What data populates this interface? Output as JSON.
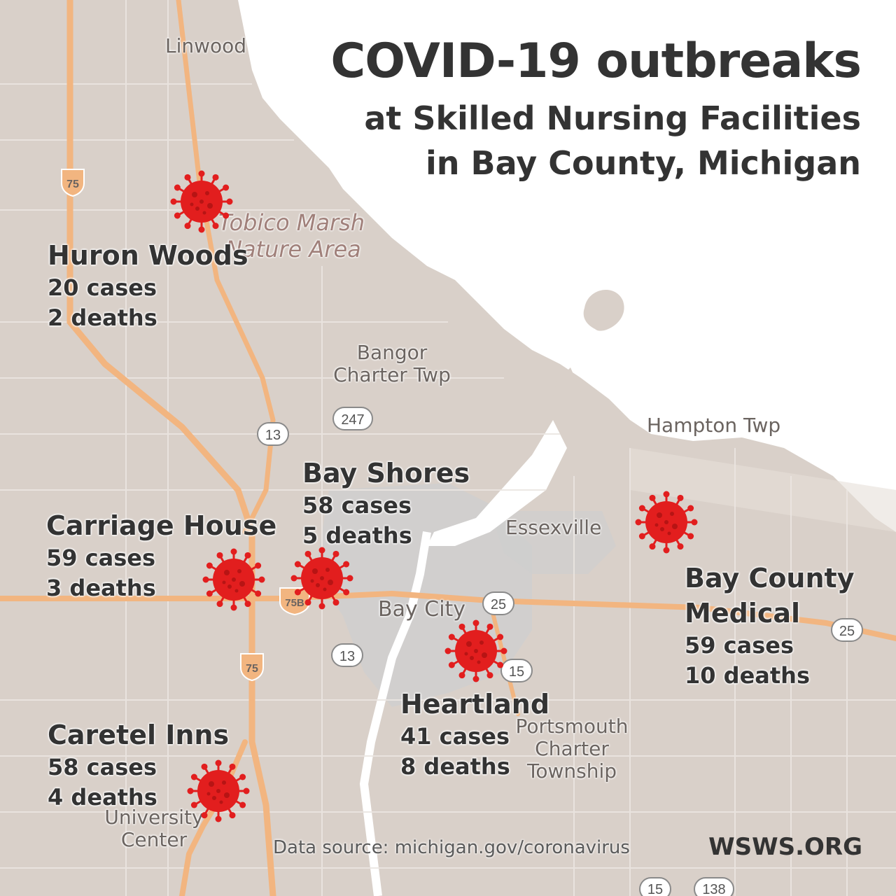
{
  "title": {
    "line1": "COVID-19 outbreaks",
    "line2": "at Skilled Nursing Facilities",
    "line3": "in Bay County, Michigan"
  },
  "map_labels": {
    "linwood": "Linwood",
    "tobico_1": "Tobico Marsh",
    "tobico_2": "Nature Area",
    "bangor_1": "Bangor",
    "bangor_2": "Charter Twp",
    "hampton": "Hampton Twp",
    "essexville": "Essexville",
    "bay_city": "Bay City",
    "portsmouth_1": "Portsmouth",
    "portsmouth_2": "Charter",
    "portsmouth_3": "Township",
    "university_1": "University",
    "university_2": "Center"
  },
  "road_shields": {
    "i75_north": "75",
    "i75_south": "75",
    "i75_business": "75B",
    "m13_north": "13",
    "m13_south": "13",
    "m247": "247",
    "m25_city": "25",
    "m25_east": "25",
    "m15_north": "15",
    "m15_south": "15",
    "m138": "138"
  },
  "facilities": [
    {
      "name": "Huron Woods",
      "cases": "20 cases",
      "deaths": "2 deaths",
      "cases_count": 20,
      "deaths_count": 2
    },
    {
      "name": "Carriage House",
      "cases": "59 cases",
      "deaths": "3 deaths",
      "cases_count": 59,
      "deaths_count": 3
    },
    {
      "name": "Bay Shores",
      "cases": "58 cases",
      "deaths": "5 deaths",
      "cases_count": 58,
      "deaths_count": 5
    },
    {
      "name": "Bay County",
      "name2": "Medical",
      "cases": "59 cases",
      "deaths": "10 deaths",
      "cases_count": 59,
      "deaths_count": 10
    },
    {
      "name": "Heartland",
      "cases": "41 cases",
      "deaths": "8 deaths",
      "cases_count": 41,
      "deaths_count": 8
    },
    {
      "name": "Caretel Inns",
      "cases": "58 cases",
      "deaths": "4 deaths",
      "cases_count": 58,
      "deaths_count": 4
    }
  ],
  "marker": {
    "icon": "virus-icon",
    "color": "#e21e1e"
  },
  "colors": {
    "land": "#d9d0c9",
    "water": "#ffffff",
    "highway": "#f2b580",
    "urban": "#cfcfcf",
    "text": "#333333"
  },
  "footer": {
    "source": "Data source: michigan.gov/coronavirus",
    "brand": "WSWS.ORG"
  }
}
